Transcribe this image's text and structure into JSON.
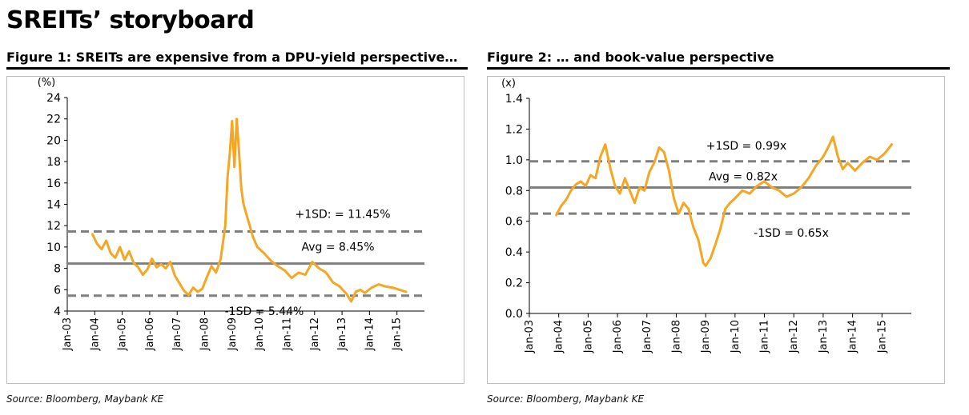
{
  "page_title": "SREITs’ storyboard",
  "figures": [
    {
      "title": "Figure 1: SREITs are expensive from a DPU-yield perspective…",
      "source": "Source: Bloomberg, Maybank KE"
    },
    {
      "title": "Figure 2: … and book-value perspective",
      "source": "Source: Bloomberg, Maybank KE"
    }
  ],
  "colors": {
    "series": "#f5a623",
    "reference": "#7f7f7f"
  },
  "chart_data": [
    {
      "type": "line",
      "ylabel": "(%)",
      "ylim": [
        4,
        24
      ],
      "yticks": [
        4,
        6,
        8,
        10,
        12,
        14,
        16,
        18,
        20,
        22,
        24
      ],
      "xlim": [
        "Jan-03",
        "Jan-16"
      ],
      "xticks": [
        "Jan-03",
        "Jan-04",
        "Jan-05",
        "Jan-06",
        "Jan-07",
        "Jan-08",
        "Jan-09",
        "Jan-10",
        "Jan-11",
        "Jan-12",
        "Jan-13",
        "Jan-14",
        "Jan-15"
      ],
      "reference_lines": [
        {
          "label": "+1SD: = 11.45%",
          "value": 11.45,
          "style": "dashed"
        },
        {
          "label": "Avg = 8.45%",
          "value": 8.45,
          "style": "solid"
        },
        {
          "label": "-1SD = 5.44%",
          "value": 5.44,
          "style": "dashed"
        }
      ],
      "series": [
        {
          "x": [
            "2003-12",
            "2004-02",
            "2004-04",
            "2004-06",
            "2004-08",
            "2004-10",
            "2004-12",
            "2005-02",
            "2005-04",
            "2005-06",
            "2005-08",
            "2005-10",
            "2005-12",
            "2006-02",
            "2006-04",
            "2006-06",
            "2006-08",
            "2006-10",
            "2006-12",
            "2007-02",
            "2007-04",
            "2007-06",
            "2007-08",
            "2007-10",
            "2007-12",
            "2008-02",
            "2008-04",
            "2008-06",
            "2008-08",
            "2008-10",
            "2008-11",
            "2008-12",
            "2009-01",
            "2009-02",
            "2009-03",
            "2009-04",
            "2009-05",
            "2009-06",
            "2009-08",
            "2009-10",
            "2009-12",
            "2010-03",
            "2010-06",
            "2010-09",
            "2010-12",
            "2011-03",
            "2011-06",
            "2011-09",
            "2011-12",
            "2012-03",
            "2012-06",
            "2012-09",
            "2012-12",
            "2013-03",
            "2013-05",
            "2013-07",
            "2013-09",
            "2013-11",
            "2014-02",
            "2014-05",
            "2014-08",
            "2014-11",
            "2015-02",
            "2015-05"
          ],
          "values": [
            11.2,
            10.3,
            9.8,
            10.6,
            9.4,
            9.0,
            10.0,
            8.8,
            9.6,
            8.5,
            8.1,
            7.4,
            7.9,
            8.9,
            8.1,
            8.4,
            8.0,
            8.6,
            7.3,
            6.6,
            5.9,
            5.5,
            6.2,
            5.8,
            6.1,
            7.2,
            8.2,
            7.6,
            8.9,
            12.0,
            16.5,
            18.8,
            21.8,
            17.5,
            22.0,
            19.0,
            15.5,
            14.0,
            12.5,
            11.0,
            10.0,
            9.4,
            8.7,
            8.2,
            7.8,
            7.1,
            7.6,
            7.4,
            8.6,
            8.0,
            7.6,
            6.7,
            6.3,
            5.6,
            4.9,
            5.8,
            6.0,
            5.7,
            6.2,
            6.5,
            6.3,
            6.2,
            6.0,
            5.8
          ]
        }
      ]
    },
    {
      "type": "line",
      "ylabel": "(x)",
      "ylim": [
        0,
        1.4
      ],
      "yticks": [
        0.0,
        0.2,
        0.4,
        0.6,
        0.8,
        1.0,
        1.2,
        1.4
      ],
      "xlim": [
        "Jan-03",
        "Jan-16"
      ],
      "xticks": [
        "Jan-03",
        "Jan-04",
        "Jan-05",
        "Jan-06",
        "Jan-07",
        "Jan-08",
        "Jan-09",
        "Jan-10",
        "Jan-11",
        "Jan-12",
        "Jan-13",
        "Jan-14",
        "Jan-15"
      ],
      "reference_lines": [
        {
          "label": "+1SD = 0.99x",
          "value": 0.99,
          "style": "dashed"
        },
        {
          "label": "Avg = 0.82x",
          "value": 0.82,
          "style": "solid"
        },
        {
          "label": "-1SD = 0.65x",
          "value": 0.65,
          "style": "dashed"
        }
      ],
      "series": [
        {
          "x": [
            "2003-12",
            "2004-02",
            "2004-04",
            "2004-06",
            "2004-08",
            "2004-10",
            "2004-12",
            "2005-02",
            "2005-04",
            "2005-06",
            "2005-08",
            "2005-10",
            "2005-12",
            "2006-02",
            "2006-04",
            "2006-06",
            "2006-08",
            "2006-10",
            "2006-12",
            "2007-02",
            "2007-04",
            "2007-06",
            "2007-08",
            "2007-10",
            "2007-12",
            "2008-02",
            "2008-04",
            "2008-06",
            "2008-08",
            "2008-10",
            "2008-12",
            "2009-01",
            "2009-03",
            "2009-05",
            "2009-07",
            "2009-09",
            "2009-11",
            "2010-01",
            "2010-04",
            "2010-07",
            "2010-10",
            "2011-01",
            "2011-04",
            "2011-07",
            "2011-10",
            "2012-01",
            "2012-04",
            "2012-07",
            "2012-10",
            "2013-01",
            "2013-03",
            "2013-05",
            "2013-07",
            "2013-09",
            "2013-11",
            "2014-02",
            "2014-05",
            "2014-08",
            "2014-11",
            "2015-02",
            "2015-04",
            "2015-05"
          ],
          "values": [
            0.64,
            0.7,
            0.74,
            0.8,
            0.84,
            0.86,
            0.83,
            0.9,
            0.88,
            1.02,
            1.1,
            0.95,
            0.83,
            0.78,
            0.88,
            0.8,
            0.72,
            0.82,
            0.8,
            0.92,
            0.98,
            1.08,
            1.05,
            0.93,
            0.75,
            0.65,
            0.72,
            0.68,
            0.56,
            0.48,
            0.33,
            0.31,
            0.36,
            0.45,
            0.55,
            0.68,
            0.72,
            0.75,
            0.8,
            0.78,
            0.83,
            0.86,
            0.82,
            0.8,
            0.76,
            0.78,
            0.82,
            0.88,
            0.96,
            1.02,
            1.08,
            1.15,
            1.02,
            0.94,
            0.98,
            0.93,
            0.98,
            1.02,
            1.0,
            1.04,
            1.08,
            1.1
          ]
        }
      ]
    }
  ]
}
